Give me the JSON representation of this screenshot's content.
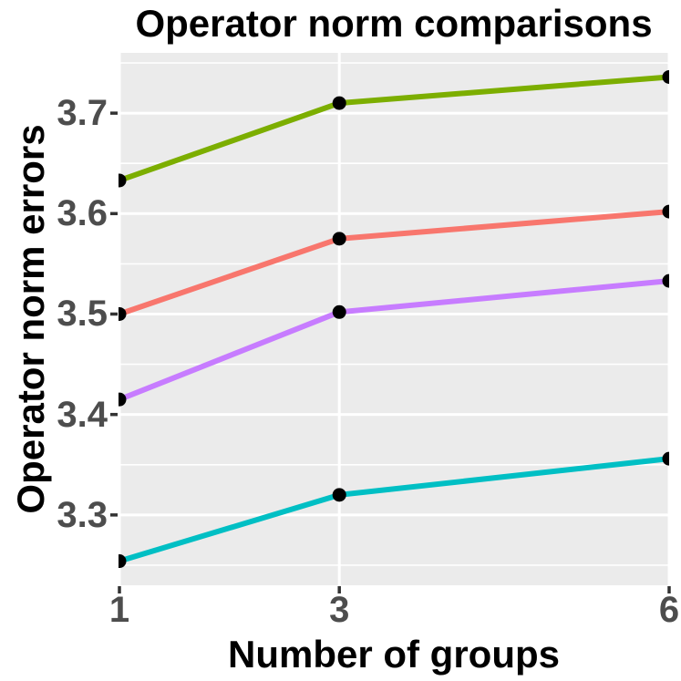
{
  "title": "Operator norm comparisons",
  "chart_data": {
    "type": "line",
    "title": "Operator norm comparisons",
    "xlabel": "Number of groups",
    "ylabel": "Operator norm errors",
    "x": [
      1,
      3,
      6
    ],
    "x_tick_labels": [
      "1",
      "3",
      "6"
    ],
    "y_ticks": [
      3.3,
      3.4,
      3.5,
      3.6,
      3.7
    ],
    "y_tick_labels": [
      "3.3",
      "3.4",
      "3.5",
      "3.6",
      "3.7"
    ],
    "xlim": [
      1,
      6
    ],
    "ylim": [
      3.23,
      3.76
    ],
    "grid": "on",
    "legend": "none",
    "series": [
      {
        "name": "green",
        "color": "#7CAE00",
        "values": [
          3.633,
          3.71,
          3.736
        ]
      },
      {
        "name": "salmon",
        "color": "#F8766D",
        "values": [
          3.5,
          3.575,
          3.602
        ]
      },
      {
        "name": "purple",
        "color": "#C77CFF",
        "values": [
          3.415,
          3.502,
          3.533
        ]
      },
      {
        "name": "cyan",
        "color": "#00BFC4",
        "values": [
          3.254,
          3.32,
          3.356
        ]
      }
    ],
    "point_color": "#000000",
    "panel_background": "#EBEBEB",
    "gridline_color": "#FFFFFF",
    "tick_label_color": "#4D4D4D",
    "axis_tick_color": "#333333"
  }
}
